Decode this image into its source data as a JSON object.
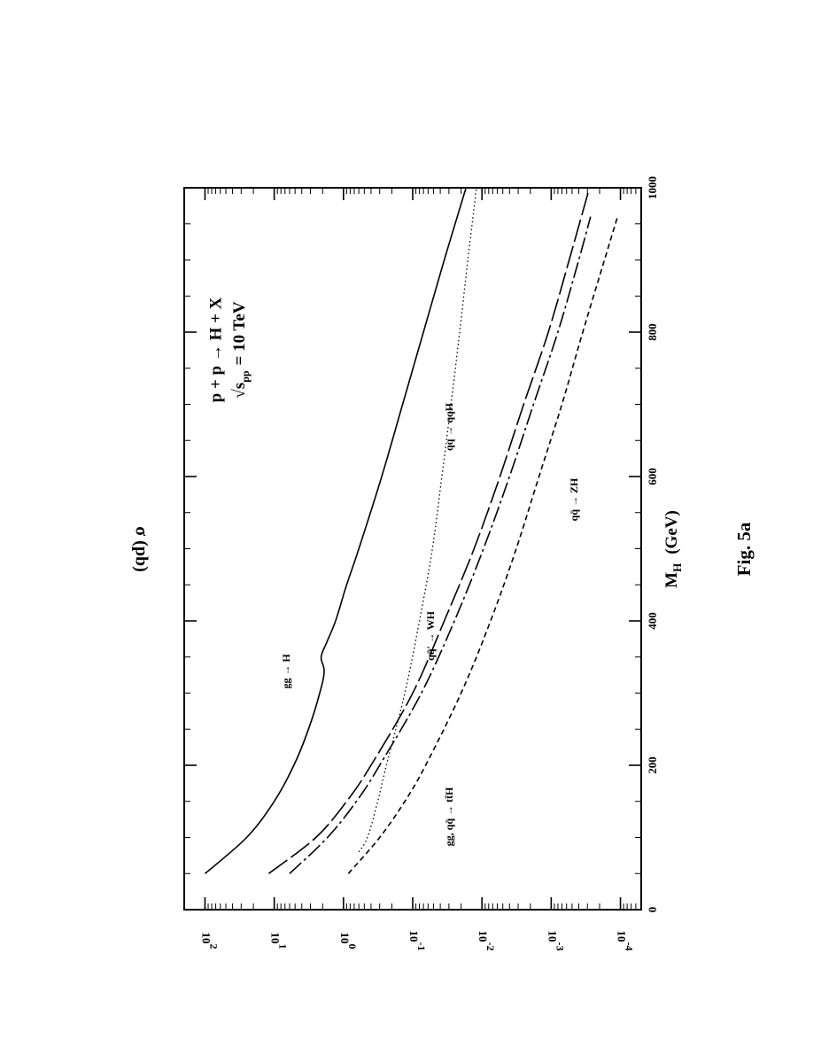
{
  "figure_label": "Fig. 5a",
  "chart_data": {
    "type": "line",
    "title_lines": [
      "p + p → H + X",
      "√s",
      "pp",
      "= 10 TeV"
    ],
    "xlabel": "M",
    "xlabel_sub": "H",
    "xlabel_unit": "(GeV)",
    "ylabel": "σ  (pb)",
    "x_scale": "linear",
    "y_scale": "log",
    "xlim": [
      0,
      1000
    ],
    "ylim_exponents": [
      -4.3,
      2.3
    ],
    "x_ticks": [
      0,
      200,
      400,
      600,
      800,
      1000
    ],
    "x_tick_labels": [
      "0",
      "200",
      "400",
      "600",
      "800",
      "1000"
    ],
    "y_ticks": [
      -4,
      -3,
      -2,
      -1,
      0,
      1,
      2
    ],
    "y_tick_labels": [
      {
        "base": "10",
        "exp": "-4"
      },
      {
        "base": "10",
        "exp": "-3"
      },
      {
        "base": "10",
        "exp": "-2"
      },
      {
        "base": "10",
        "exp": "-1"
      },
      {
        "base": "10",
        "exp": "0"
      },
      {
        "base": "10",
        "exp": "1"
      },
      {
        "base": "10",
        "exp": "2"
      }
    ],
    "series": [
      {
        "name": "gg → H",
        "style": "solid",
        "x": [
          50,
          100,
          150,
          200,
          250,
          300,
          330,
          350,
          370,
          400,
          450,
          500,
          600,
          700,
          800,
          900,
          1000
        ],
        "y": [
          100,
          25,
          10,
          5.2,
          3.2,
          2.2,
          1.9,
          2.1,
          1.75,
          1.3,
          0.9,
          0.6,
          0.28,
          0.14,
          0.07,
          0.035,
          0.017
        ]
      },
      {
        "name": "qq → qqH",
        "style": "dotted",
        "x": [
          80,
          100,
          150,
          200,
          300,
          400,
          500,
          600,
          700,
          800,
          900,
          1000
        ],
        "y": [
          0.6,
          0.45,
          0.32,
          0.24,
          0.13,
          0.08,
          0.052,
          0.038,
          0.028,
          0.021,
          0.016,
          0.012
        ]
      },
      {
        "name": "qq̄′ → WH",
        "style": "long-dash",
        "x": [
          50,
          100,
          150,
          200,
          300,
          400,
          500,
          600,
          700,
          800,
          900,
          1000
        ],
        "y": [
          12,
          2.5,
          0.9,
          0.4,
          0.1,
          0.035,
          0.013,
          0.0055,
          0.0025,
          0.0011,
          0.00055,
          0.00028
        ]
      },
      {
        "name": "gg, qq̄ → tt̄H",
        "style": "dash-dot",
        "x": [
          50,
          100,
          150,
          200,
          300,
          400,
          500,
          600,
          700,
          800,
          900,
          960
        ],
        "y": [
          6,
          1.7,
          0.65,
          0.3,
          0.075,
          0.025,
          0.0095,
          0.004,
          0.0018,
          0.0008,
          0.0004,
          0.00027
        ]
      },
      {
        "name": "qq̄ → ZH",
        "style": "short-dash",
        "x": [
          50,
          100,
          150,
          200,
          300,
          400,
          500,
          600,
          700,
          800,
          900,
          960
        ],
        "y": [
          0.85,
          0.3,
          0.13,
          0.065,
          0.02,
          0.0075,
          0.0032,
          0.0015,
          0.0007,
          0.00035,
          0.00017,
          0.00011
        ]
      }
    ]
  }
}
